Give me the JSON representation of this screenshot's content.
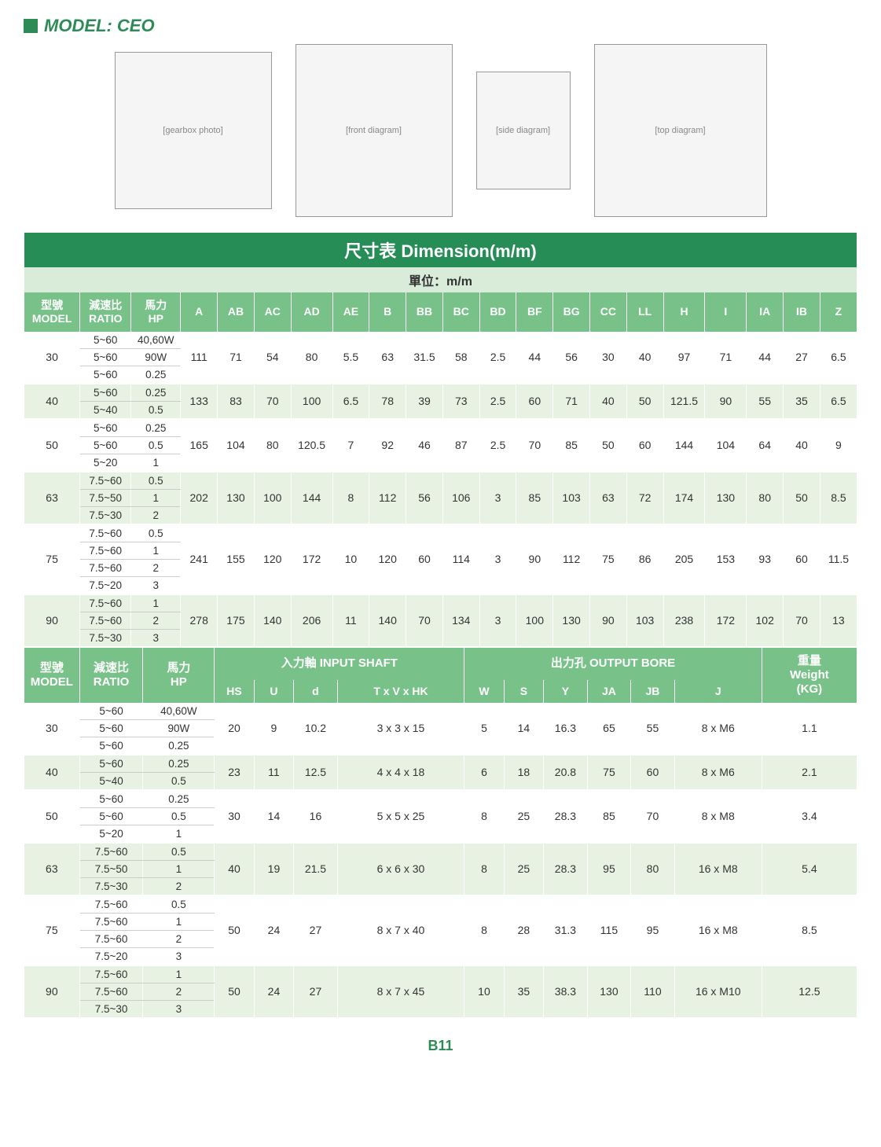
{
  "header": {
    "label": "MODEL: CEO"
  },
  "diagrams": {
    "photo_label": "[gearbox photo]",
    "front_label": "[front diagram]",
    "side_label": "[side diagram]",
    "top_label": "[top diagram]",
    "annotations": {
      "input_shaft": "入力軸",
      "output_bore": "出力孔"
    }
  },
  "table1": {
    "title": "尺寸表 Dimension(m/m)",
    "unit": "單位：m/m",
    "headers": {
      "model_cn": "型號",
      "model_en": "MODEL",
      "ratio_cn": "減速比",
      "ratio_en": "RATIO",
      "hp_cn": "馬力",
      "hp_en": "HP",
      "cols": [
        "A",
        "AB",
        "AC",
        "AD",
        "AE",
        "B",
        "BB",
        "BC",
        "BD",
        "BF",
        "BG",
        "CC",
        "LL",
        "H",
        "I",
        "IA",
        "IB",
        "Z"
      ]
    },
    "rows": [
      {
        "model": "30",
        "variants": [
          [
            "5~60",
            "40,60W"
          ],
          [
            "5~60",
            "90W"
          ],
          [
            "5~60",
            "0.25"
          ]
        ],
        "dims": [
          "111",
          "71",
          "54",
          "80",
          "5.5",
          "63",
          "31.5",
          "58",
          "2.5",
          "44",
          "56",
          "30",
          "40",
          "97",
          "71",
          "44",
          "27",
          "6.5"
        ]
      },
      {
        "model": "40",
        "variants": [
          [
            "5~60",
            "0.25"
          ],
          [
            "5~40",
            "0.5"
          ]
        ],
        "dims": [
          "133",
          "83",
          "70",
          "100",
          "6.5",
          "78",
          "39",
          "73",
          "2.5",
          "60",
          "71",
          "40",
          "50",
          "121.5",
          "90",
          "55",
          "35",
          "6.5"
        ]
      },
      {
        "model": "50",
        "variants": [
          [
            "5~60",
            "0.25"
          ],
          [
            "5~60",
            "0.5"
          ],
          [
            "5~20",
            "1"
          ]
        ],
        "dims": [
          "165",
          "104",
          "80",
          "120.5",
          "7",
          "92",
          "46",
          "87",
          "2.5",
          "70",
          "85",
          "50",
          "60",
          "144",
          "104",
          "64",
          "40",
          "9"
        ]
      },
      {
        "model": "63",
        "variants": [
          [
            "7.5~60",
            "0.5"
          ],
          [
            "7.5~50",
            "1"
          ],
          [
            "7.5~30",
            "2"
          ]
        ],
        "dims": [
          "202",
          "130",
          "100",
          "144",
          "8",
          "112",
          "56",
          "106",
          "3",
          "85",
          "103",
          "63",
          "72",
          "174",
          "130",
          "80",
          "50",
          "8.5"
        ]
      },
      {
        "model": "75",
        "variants": [
          [
            "7.5~60",
            "0.5"
          ],
          [
            "7.5~60",
            "1"
          ],
          [
            "7.5~60",
            "2"
          ],
          [
            "7.5~20",
            "3"
          ]
        ],
        "dims": [
          "241",
          "155",
          "120",
          "172",
          "10",
          "120",
          "60",
          "114",
          "3",
          "90",
          "112",
          "75",
          "86",
          "205",
          "153",
          "93",
          "60",
          "11.5"
        ]
      },
      {
        "model": "90",
        "variants": [
          [
            "7.5~60",
            "1"
          ],
          [
            "7.5~60",
            "2"
          ],
          [
            "7.5~30",
            "3"
          ]
        ],
        "dims": [
          "278",
          "175",
          "140",
          "206",
          "11",
          "140",
          "70",
          "134",
          "3",
          "100",
          "130",
          "90",
          "103",
          "238",
          "172",
          "102",
          "70",
          "13"
        ]
      }
    ]
  },
  "table2": {
    "headers": {
      "model_cn": "型號",
      "model_en": "MODEL",
      "ratio_cn": "減速比",
      "ratio_en": "RATIO",
      "hp_cn": "馬力",
      "hp_en": "HP",
      "input_shaft_cn": "入力軸 INPUT SHAFT",
      "output_bore_cn": "出力孔 OUTPUT BORE",
      "weight_cn": "重量",
      "weight_en": "Weight",
      "weight_unit": "(KG)",
      "input_cols": [
        "HS",
        "U",
        "d",
        "T x V x HK"
      ],
      "output_cols": [
        "W",
        "S",
        "Y",
        "JA",
        "JB",
        "J"
      ]
    },
    "rows": [
      {
        "model": "30",
        "variants": [
          [
            "5~60",
            "40,60W"
          ],
          [
            "5~60",
            "90W"
          ],
          [
            "5~60",
            "0.25"
          ]
        ],
        "in": [
          "20",
          "9",
          "10.2",
          "3 x 3 x 15"
        ],
        "out": [
          "5",
          "14",
          "16.3",
          "65",
          "55",
          "8 x M6"
        ],
        "wt": "1.1"
      },
      {
        "model": "40",
        "variants": [
          [
            "5~60",
            "0.25"
          ],
          [
            "5~40",
            "0.5"
          ]
        ],
        "in": [
          "23",
          "11",
          "12.5",
          "4 x 4 x 18"
        ],
        "out": [
          "6",
          "18",
          "20.8",
          "75",
          "60",
          "8 x M6"
        ],
        "wt": "2.1"
      },
      {
        "model": "50",
        "variants": [
          [
            "5~60",
            "0.25"
          ],
          [
            "5~60",
            "0.5"
          ],
          [
            "5~20",
            "1"
          ]
        ],
        "in": [
          "30",
          "14",
          "16",
          "5 x 5 x 25"
        ],
        "out": [
          "8",
          "25",
          "28.3",
          "85",
          "70",
          "8 x M8"
        ],
        "wt": "3.4"
      },
      {
        "model": "63",
        "variants": [
          [
            "7.5~60",
            "0.5"
          ],
          [
            "7.5~50",
            "1"
          ],
          [
            "7.5~30",
            "2"
          ]
        ],
        "in": [
          "40",
          "19",
          "21.5",
          "6 x 6 x 30"
        ],
        "out": [
          "8",
          "25",
          "28.3",
          "95",
          "80",
          "16 x M8"
        ],
        "wt": "5.4"
      },
      {
        "model": "75",
        "variants": [
          [
            "7.5~60",
            "0.5"
          ],
          [
            "7.5~60",
            "1"
          ],
          [
            "7.5~60",
            "2"
          ],
          [
            "7.5~20",
            "3"
          ]
        ],
        "in": [
          "50",
          "24",
          "27",
          "8 x 7 x 40"
        ],
        "out": [
          "8",
          "28",
          "31.3",
          "115",
          "95",
          "16 x M8"
        ],
        "wt": "8.5"
      },
      {
        "model": "90",
        "variants": [
          [
            "7.5~60",
            "1"
          ],
          [
            "7.5~60",
            "2"
          ],
          [
            "7.5~30",
            "3"
          ]
        ],
        "in": [
          "50",
          "24",
          "27",
          "8 x 7 x 45"
        ],
        "out": [
          "10",
          "35",
          "38.3",
          "130",
          "110",
          "16 x M10"
        ],
        "wt": "12.5"
      }
    ]
  },
  "footer": "B11",
  "colors": {
    "green_dark": "#268d56",
    "green_header": "#78c28a",
    "green_tint_unit": "#d9ecd9",
    "green_tint_row": "#e8f2e3",
    "text": "#333",
    "white": "#ffffff",
    "border_light": "#cccccc"
  },
  "fonts": {
    "base": 14,
    "title": 22,
    "footer": 18
  }
}
